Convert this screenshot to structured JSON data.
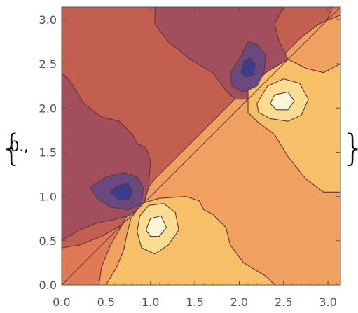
{
  "prefix_text": "0.,",
  "brace_open": "{",
  "brace_close": "}",
  "chart_data": {
    "type": "contour",
    "title": "",
    "xlabel": "",
    "ylabel": "",
    "xlim": [
      0,
      3.14159
    ],
    "ylim": [
      0,
      3.14159
    ],
    "x_ticks": [
      "0.0",
      "0.5",
      "1.0",
      "1.5",
      "2.0",
      "2.5",
      "3.0"
    ],
    "y_ticks": [
      "0.0",
      "0.5",
      "1.0",
      "1.5",
      "2.0",
      "2.5",
      "3.0"
    ],
    "x_tick_values": [
      0,
      0.5,
      1.0,
      1.5,
      2.0,
      2.5,
      3.0
    ],
    "y_tick_values": [
      0,
      0.5,
      1.0,
      1.5,
      2.0,
      2.5,
      3.0
    ],
    "colors": {
      "band_-4": "#3a3c8e",
      "band_-3": "#6a4a7e",
      "band_-2": "#a24e5c",
      "band_-1": "#c35f50",
      "band_0": "#e07a55",
      "band_1": "#f0a160",
      "band_2": "#f7bf68",
      "band_3": "#fbdc93",
      "band_4": "#fdf7d8",
      "contour_line": "#5a3a35",
      "frame": "#555555"
    },
    "features": [
      {
        "kind": "minimum",
        "x": 0.7,
        "y": 1.05
      },
      {
        "kind": "minimum",
        "x": 2.1,
        "y": 2.45
      },
      {
        "kind": "maximum",
        "x": 1.05,
        "y": 0.65
      },
      {
        "kind": "maximum",
        "x": 2.45,
        "y": 2.1
      }
    ]
  }
}
